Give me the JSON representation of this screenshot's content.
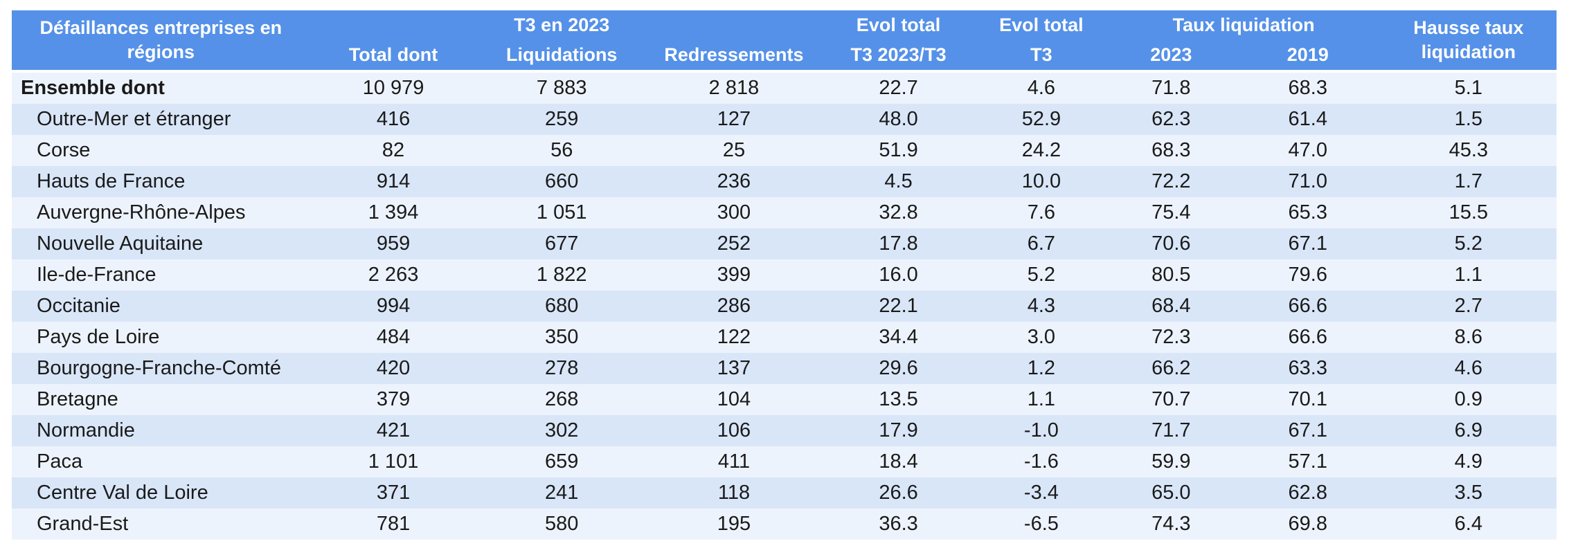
{
  "colors": {
    "header_bg": "#5591E8",
    "header_text": "#FFFFFF",
    "row_light": "#EDF3FC",
    "row_dark": "#D9E6F8",
    "body_text": "#1A1A1A",
    "page_bg": "#FFFFFF"
  },
  "table": {
    "header": {
      "col_region": "Défaillances entreprises en régions",
      "group_t3": "T3 en 2023",
      "col_total": "Total dont",
      "col_liquidations": "Liquidations",
      "col_redressements": "Redressements",
      "group_evol1": "Evol total",
      "col_evol1_sub": "T3 2023/T3",
      "group_evol2": "Evol total",
      "col_evol2_sub": "T3",
      "group_taux": "Taux liquidation",
      "col_2023": "2023",
      "col_2019": "2019",
      "col_hausse": "Hausse taux liquidation"
    },
    "rows": [
      {
        "region": "Ensemble dont",
        "bold": true,
        "indent": false,
        "values": [
          "10 979",
          "7 883",
          "2 818",
          "22.7",
          "4.6",
          "71.8",
          "68.3",
          "5.1"
        ]
      },
      {
        "region": "Outre-Mer et étranger",
        "bold": false,
        "indent": true,
        "values": [
          "416",
          "259",
          "127",
          "48.0",
          "52.9",
          "62.3",
          "61.4",
          "1.5"
        ]
      },
      {
        "region": "Corse",
        "bold": false,
        "indent": true,
        "values": [
          "82",
          "56",
          "25",
          "51.9",
          "24.2",
          "68.3",
          "47.0",
          "45.3"
        ]
      },
      {
        "region": "Hauts de France",
        "bold": false,
        "indent": true,
        "values": [
          "914",
          "660",
          "236",
          "4.5",
          "10.0",
          "72.2",
          "71.0",
          "1.7"
        ]
      },
      {
        "region": "Auvergne-Rhône-Alpes",
        "bold": false,
        "indent": true,
        "values": [
          "1 394",
          "1 051",
          "300",
          "32.8",
          "7.6",
          "75.4",
          "65.3",
          "15.5"
        ]
      },
      {
        "region": "Nouvelle Aquitaine",
        "bold": false,
        "indent": true,
        "values": [
          "959",
          "677",
          "252",
          "17.8",
          "6.7",
          "70.6",
          "67.1",
          "5.2"
        ]
      },
      {
        "region": "Ile-de-France",
        "bold": false,
        "indent": true,
        "values": [
          "2 263",
          "1 822",
          "399",
          "16.0",
          "5.2",
          "80.5",
          "79.6",
          "1.1"
        ]
      },
      {
        "region": "Occitanie",
        "bold": false,
        "indent": true,
        "values": [
          "994",
          "680",
          "286",
          "22.1",
          "4.3",
          "68.4",
          "66.6",
          "2.7"
        ]
      },
      {
        "region": "Pays de Loire",
        "bold": false,
        "indent": true,
        "values": [
          "484",
          "350",
          "122",
          "34.4",
          "3.0",
          "72.3",
          "66.6",
          "8.6"
        ]
      },
      {
        "region": "Bourgogne-Franche-Comté",
        "bold": false,
        "indent": true,
        "values": [
          "420",
          "278",
          "137",
          "29.6",
          "1.2",
          "66.2",
          "63.3",
          "4.6"
        ]
      },
      {
        "region": "Bretagne",
        "bold": false,
        "indent": true,
        "values": [
          "379",
          "268",
          "104",
          "13.5",
          "1.1",
          "70.7",
          "70.1",
          "0.9"
        ]
      },
      {
        "region": "Normandie",
        "bold": false,
        "indent": true,
        "values": [
          "421",
          "302",
          "106",
          "17.9",
          "-1.0",
          "71.7",
          "67.1",
          "6.9"
        ]
      },
      {
        "region": "Paca",
        "bold": false,
        "indent": true,
        "values": [
          "1 101",
          "659",
          "411",
          "18.4",
          "-1.6",
          "59.9",
          "57.1",
          "4.9"
        ]
      },
      {
        "region": "Centre Val de Loire",
        "bold": false,
        "indent": true,
        "values": [
          "371",
          "241",
          "118",
          "26.6",
          "-3.4",
          "65.0",
          "62.8",
          "3.5"
        ]
      },
      {
        "region": "Grand-Est",
        "bold": false,
        "indent": true,
        "values": [
          "781",
          "580",
          "195",
          "36.3",
          "-6.5",
          "74.3",
          "69.8",
          "6.4"
        ]
      }
    ]
  },
  "chart_data": {
    "type": "table",
    "title": "Défaillances entreprises en régions",
    "columns": [
      "Région",
      "T3 en 2023 - Total dont",
      "T3 en 2023 - Liquidations",
      "Redressements",
      "Evol total T3 2023/T3",
      "Evol total T3",
      "Taux liquidation 2023",
      "Taux liquidation 2019",
      "Hausse taux liquidation"
    ],
    "rows": [
      [
        "Ensemble dont",
        10979,
        7883,
        2818,
        22.7,
        4.6,
        71.8,
        68.3,
        5.1
      ],
      [
        "Outre-Mer et étranger",
        416,
        259,
        127,
        48.0,
        52.9,
        62.3,
        61.4,
        1.5
      ],
      [
        "Corse",
        82,
        56,
        25,
        51.9,
        24.2,
        68.3,
        47.0,
        45.3
      ],
      [
        "Hauts de France",
        914,
        660,
        236,
        4.5,
        10.0,
        72.2,
        71.0,
        1.7
      ],
      [
        "Auvergne-Rhône-Alpes",
        1394,
        1051,
        300,
        32.8,
        7.6,
        75.4,
        65.3,
        15.5
      ],
      [
        "Nouvelle Aquitaine",
        959,
        677,
        252,
        17.8,
        6.7,
        70.6,
        67.1,
        5.2
      ],
      [
        "Ile-de-France",
        2263,
        1822,
        399,
        16.0,
        5.2,
        80.5,
        79.6,
        1.1
      ],
      [
        "Occitanie",
        994,
        680,
        286,
        22.1,
        4.3,
        68.4,
        66.6,
        2.7
      ],
      [
        "Pays de Loire",
        484,
        350,
        122,
        34.4,
        3.0,
        72.3,
        66.6,
        8.6
      ],
      [
        "Bourgogne-Franche-Comté",
        420,
        278,
        137,
        29.6,
        1.2,
        66.2,
        63.3,
        4.6
      ],
      [
        "Bretagne",
        379,
        268,
        104,
        13.5,
        1.1,
        70.7,
        70.1,
        0.9
      ],
      [
        "Normandie",
        421,
        302,
        106,
        17.9,
        -1.0,
        71.7,
        67.1,
        6.9
      ],
      [
        "Paca",
        1101,
        659,
        411,
        18.4,
        -1.6,
        59.9,
        57.1,
        4.9
      ],
      [
        "Centre Val de Loire",
        371,
        241,
        118,
        26.6,
        -3.4,
        65.0,
        62.8,
        3.5
      ],
      [
        "Grand-Est",
        781,
        580,
        195,
        36.3,
        -6.5,
        74.3,
        69.8,
        6.4
      ]
    ]
  }
}
